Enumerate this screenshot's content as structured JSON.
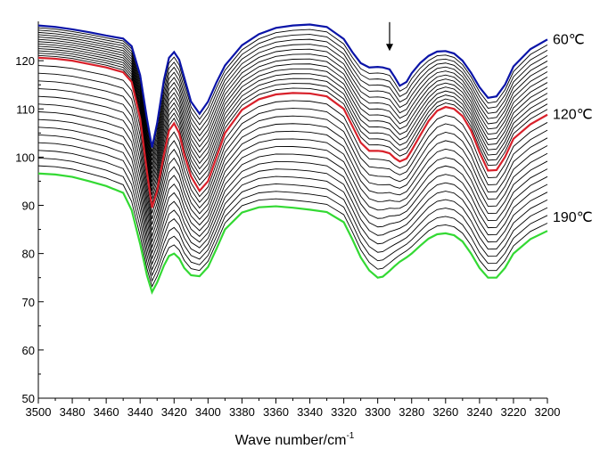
{
  "chart_data": {
    "type": "line",
    "title": "",
    "xlabel": "Wave number/cm",
    "xlabel_superscript": "-1",
    "ylabel": "",
    "xlim": [
      3500,
      3200
    ],
    "x_reversed": true,
    "ylim": [
      50,
      130
    ],
    "x_ticks": [
      3500,
      3480,
      3460,
      3440,
      3420,
      3400,
      3380,
      3360,
      3340,
      3320,
      3300,
      3280,
      3260,
      3240,
      3220,
      3200
    ],
    "x_tick_labels": [
      "3500",
      "3480",
      "3460",
      "3440",
      "3420",
      "3400",
      "3380",
      "3360",
      "3340",
      "3320",
      "3300",
      "3280",
      "3260",
      "3240",
      "3220",
      "3200"
    ],
    "y_ticks": [
      50,
      60,
      70,
      80,
      90,
      100,
      110,
      120
    ],
    "y_tick_labels": [
      "50",
      "60",
      "70",
      "80",
      "90",
      "100",
      "110",
      "120"
    ],
    "grid": false,
    "legend": "none",
    "annotations": [
      {
        "text": "60℃",
        "series": "top"
      },
      {
        "text": "120℃",
        "series": "middle"
      },
      {
        "text": "190℃",
        "series": "bottom"
      },
      {
        "type": "arrow",
        "x": 3293,
        "y_from": 128,
        "y_to": 122
      }
    ],
    "intermediate_curve_count": 27,
    "x": [
      3500,
      3490,
      3480,
      3470,
      3460,
      3450,
      3445,
      3440,
      3436,
      3433,
      3430,
      3426,
      3423,
      3420,
      3417,
      3414,
      3410,
      3405,
      3400,
      3395,
      3390,
      3380,
      3370,
      3360,
      3350,
      3340,
      3330,
      3320,
      3315,
      3310,
      3305,
      3300,
      3297,
      3293,
      3290,
      3287,
      3283,
      3280,
      3275,
      3270,
      3265,
      3260,
      3255,
      3250,
      3245,
      3240,
      3235,
      3230,
      3225,
      3220,
      3210,
      3200
    ],
    "series": [
      {
        "name": "60℃",
        "color": "#0a14a8",
        "values": [
          127.3,
          127.0,
          126.5,
          125.9,
          125.2,
          124.6,
          123.0,
          117.0,
          108.0,
          102.0,
          107.0,
          116.0,
          120.6,
          121.8,
          120.2,
          116.5,
          111.5,
          109.0,
          111.5,
          115.5,
          119.0,
          123.2,
          125.5,
          126.8,
          127.3,
          127.5,
          127.0,
          124.5,
          121.8,
          119.5,
          118.6,
          118.7,
          118.6,
          118.2,
          116.6,
          114.8,
          115.6,
          117.4,
          119.5,
          121.0,
          121.9,
          122.0,
          121.5,
          120.0,
          117.5,
          114.5,
          112.3,
          112.6,
          115.0,
          118.8,
          122.4,
          124.4
        ]
      },
      {
        "name": "120℃",
        "color": "#d8202a",
        "values": [
          120.6,
          120.4,
          120.0,
          119.3,
          118.6,
          117.6,
          115.6,
          108.0,
          97.0,
          89.5,
          93.0,
          100.5,
          105.5,
          107.0,
          105.0,
          100.5,
          96.0,
          93.0,
          95.0,
          100.0,
          105.0,
          109.8,
          112.0,
          113.0,
          113.3,
          113.2,
          112.6,
          110.0,
          106.5,
          103.0,
          101.3,
          101.3,
          101.2,
          100.8,
          99.8,
          99.1,
          99.7,
          101.4,
          104.5,
          107.5,
          109.6,
          110.4,
          110.0,
          108.5,
          105.5,
          101.0,
          97.2,
          97.3,
          100.0,
          103.8,
          106.8,
          108.8
        ]
      },
      {
        "name": "190℃",
        "color": "#33d933",
        "values": [
          96.6,
          96.4,
          95.9,
          95.0,
          94.0,
          92.6,
          89.0,
          82.0,
          75.5,
          72.0,
          74.0,
          77.5,
          79.5,
          80.0,
          79.0,
          77.0,
          75.5,
          75.3,
          77.2,
          81.0,
          85.0,
          88.5,
          89.6,
          89.8,
          89.5,
          89.1,
          88.6,
          86.5,
          83.0,
          79.2,
          76.5,
          75.0,
          75.2,
          76.4,
          77.4,
          78.3,
          79.2,
          80.0,
          81.6,
          83.1,
          84.0,
          84.2,
          83.8,
          82.5,
          80.0,
          77.0,
          75.0,
          75.0,
          77.0,
          80.0,
          83.0,
          84.7
        ]
      }
    ]
  }
}
